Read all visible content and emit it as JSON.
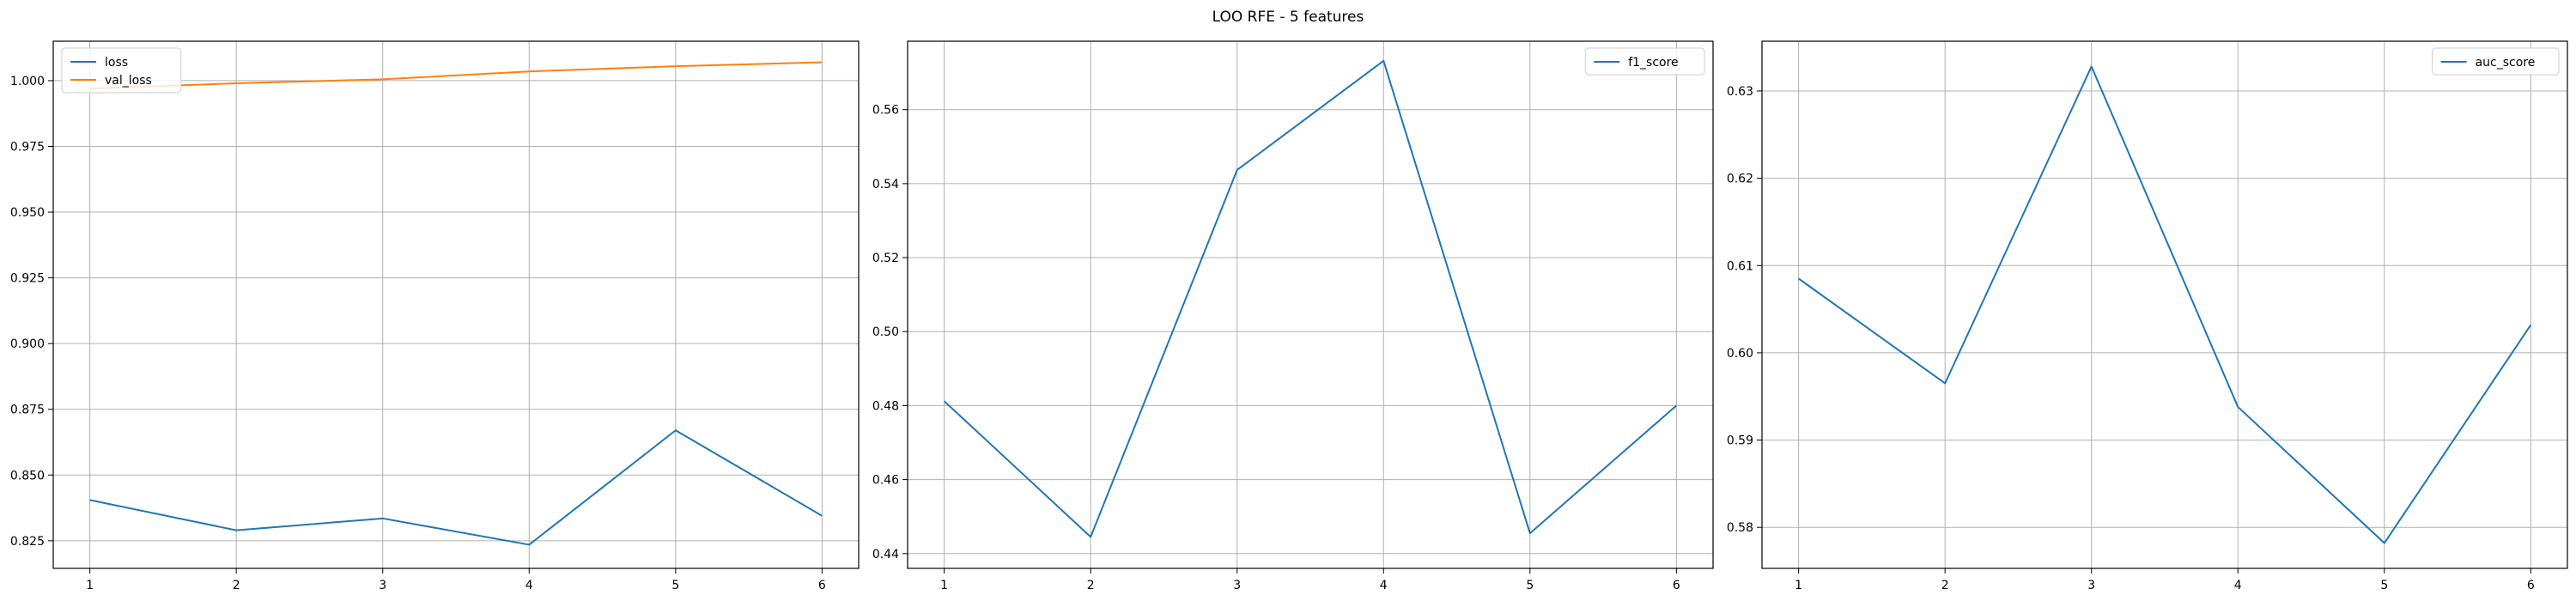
{
  "figure": {
    "title": "LOO RFE - 5 features"
  },
  "colors": {
    "series_blue": "#1f77b4",
    "series_orange": "#ff7f0e",
    "grid": "#b0b0b0",
    "axes": "#000000"
  },
  "chart_data": [
    {
      "type": "line",
      "title": "",
      "xlabel": "",
      "ylabel": "",
      "grid": true,
      "legend_position": "top-left",
      "x": [
        1,
        2,
        3,
        4,
        5,
        6
      ],
      "x_ticks": [
        1,
        2,
        3,
        4,
        5,
        6
      ],
      "xlim": [
        0.75,
        6.25
      ],
      "ylim": [
        0.8145,
        1.015
      ],
      "y_ticks": [
        0.825,
        0.85,
        0.875,
        0.9,
        0.925,
        0.95,
        0.975,
        1.0
      ],
      "y_tick_labels": [
        "0.825",
        "0.850",
        "0.875",
        "0.900",
        "0.925",
        "0.950",
        "0.975",
        "1.000"
      ],
      "series": [
        {
          "name": "loss",
          "color": "#1f77b4",
          "values": [
            0.8405,
            0.829,
            0.8335,
            0.8235,
            0.867,
            0.8345
          ]
        },
        {
          "name": "val_loss",
          "color": "#ff7f0e",
          "values": [
            0.997,
            0.999,
            1.0005,
            1.0035,
            1.0055,
            1.007
          ]
        }
      ]
    },
    {
      "type": "line",
      "title": "",
      "xlabel": "",
      "ylabel": "",
      "grid": true,
      "legend_position": "top-right",
      "x": [
        1,
        2,
        3,
        4,
        5,
        6
      ],
      "x_ticks": [
        1,
        2,
        3,
        4,
        5,
        6
      ],
      "xlim": [
        0.75,
        6.25
      ],
      "ylim": [
        0.436,
        0.5785
      ],
      "y_ticks": [
        0.44,
        0.46,
        0.48,
        0.5,
        0.52,
        0.54,
        0.56
      ],
      "y_tick_labels": [
        "0.44",
        "0.46",
        "0.48",
        "0.50",
        "0.52",
        "0.54",
        "0.56"
      ],
      "series": [
        {
          "name": "f1_score",
          "color": "#1f77b4",
          "values": [
            0.4812,
            0.4445,
            0.5437,
            0.5732,
            0.4455,
            0.48
          ]
        }
      ]
    },
    {
      "type": "line",
      "title": "",
      "xlabel": "",
      "ylabel": "",
      "grid": true,
      "legend_position": "top-right",
      "x": [
        1,
        2,
        3,
        4,
        5,
        6
      ],
      "x_ticks": [
        1,
        2,
        3,
        4,
        5,
        6
      ],
      "xlim": [
        0.75,
        6.25
      ],
      "ylim": [
        0.5753,
        0.6357
      ],
      "y_ticks": [
        0.58,
        0.59,
        0.6,
        0.61,
        0.62,
        0.63
      ],
      "y_tick_labels": [
        "0.58",
        "0.59",
        "0.60",
        "0.61",
        "0.62",
        "0.63"
      ],
      "series": [
        {
          "name": "auc_score",
          "color": "#1f77b4",
          "values": [
            0.6085,
            0.5965,
            0.6328,
            0.5938,
            0.5782,
            0.6032
          ]
        }
      ]
    }
  ]
}
